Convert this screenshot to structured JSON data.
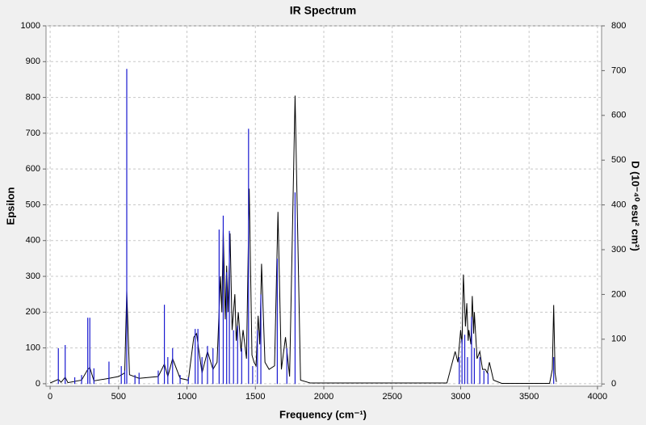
{
  "chart_data": {
    "type": "spectrum",
    "title": "IR Spectrum",
    "xlabel": "Frequency (cm⁻¹)",
    "ylabel": "Epsilon",
    "y2label": "D (10⁻⁴⁰ esu² cm²)",
    "xlim": [
      -30,
      4030
    ],
    "ylim": [
      -7,
      1000
    ],
    "y2lim": [
      -5,
      800
    ],
    "xticks": [
      0,
      500,
      1000,
      1500,
      2000,
      2500,
      3000,
      3500,
      4000
    ],
    "yticks": [
      0,
      100,
      200,
      300,
      400,
      500,
      600,
      700,
      800,
      900,
      1000
    ],
    "y2ticks": [
      0,
      100,
      200,
      300,
      400,
      500,
      600,
      700,
      800
    ],
    "grid": true,
    "series": [
      {
        "name": "Epsilon",
        "color": "#000000",
        "axis": "y",
        "x": [
          0,
          60,
          80,
          110,
          130,
          230,
          275,
          290,
          320,
          430,
          500,
          545,
          560,
          580,
          650,
          790,
          835,
          860,
          895,
          950,
          1010,
          1050,
          1070,
          1110,
          1150,
          1190,
          1220,
          1245,
          1255,
          1265,
          1280,
          1290,
          1300,
          1315,
          1330,
          1350,
          1360,
          1375,
          1395,
          1410,
          1435,
          1455,
          1475,
          1490,
          1505,
          1520,
          1532,
          1545,
          1570,
          1600,
          1640,
          1665,
          1690,
          1720,
          1750,
          1790,
          1830,
          1900,
          2900,
          2960,
          2980,
          3000,
          3010,
          3020,
          3035,
          3045,
          3055,
          3060,
          3075,
          3085,
          3095,
          3100,
          3120,
          3140,
          3160,
          3180,
          3195,
          3210,
          3240,
          3300,
          3650,
          3670,
          3680,
          3690,
          3700
        ],
        "values": [
          2,
          12,
          4,
          18,
          3,
          10,
          40,
          45,
          8,
          15,
          20,
          30,
          260,
          25,
          15,
          20,
          55,
          20,
          70,
          15,
          10,
          130,
          140,
          30,
          90,
          40,
          60,
          300,
          200,
          430,
          180,
          330,
          200,
          420,
          150,
          250,
          120,
          200,
          90,
          150,
          70,
          545,
          80,
          60,
          50,
          190,
          110,
          335,
          60,
          40,
          50,
          480,
          40,
          130,
          20,
          805,
          10,
          2,
          2,
          90,
          60,
          150,
          110,
          305,
          160,
          225,
          120,
          150,
          110,
          245,
          140,
          200,
          70,
          90,
          40,
          40,
          30,
          60,
          10,
          1,
          1,
          40,
          220,
          30,
          5
        ]
      },
      {
        "name": "D",
        "color": "#1a1ad0",
        "axis": "y2",
        "x": [
          60,
          110,
          180,
          230,
          275,
          290,
          320,
          430,
          520,
          545,
          560,
          620,
          650,
          790,
          835,
          860,
          895,
          950,
          1010,
          1060,
          1080,
          1110,
          1150,
          1190,
          1235,
          1265,
          1290,
          1310,
          1340,
          1370,
          1400,
          1450,
          1480,
          1515,
          1540,
          1660,
          1730,
          1790,
          2990,
          3010,
          3030,
          3050,
          3080,
          3100,
          3140,
          3170,
          3200,
          3680
        ],
        "values": [
          80,
          87,
          15,
          20,
          148,
          148,
          35,
          50,
          40,
          30,
          704,
          20,
          25,
          30,
          177,
          60,
          80,
          20,
          15,
          123,
          123,
          60,
          85,
          80,
          345,
          376,
          250,
          342,
          120,
          130,
          80,
          570,
          40,
          120,
          200,
          280,
          80,
          428,
          60,
          100,
          110,
          60,
          150,
          80,
          60,
          30,
          25,
          60
        ]
      }
    ]
  }
}
